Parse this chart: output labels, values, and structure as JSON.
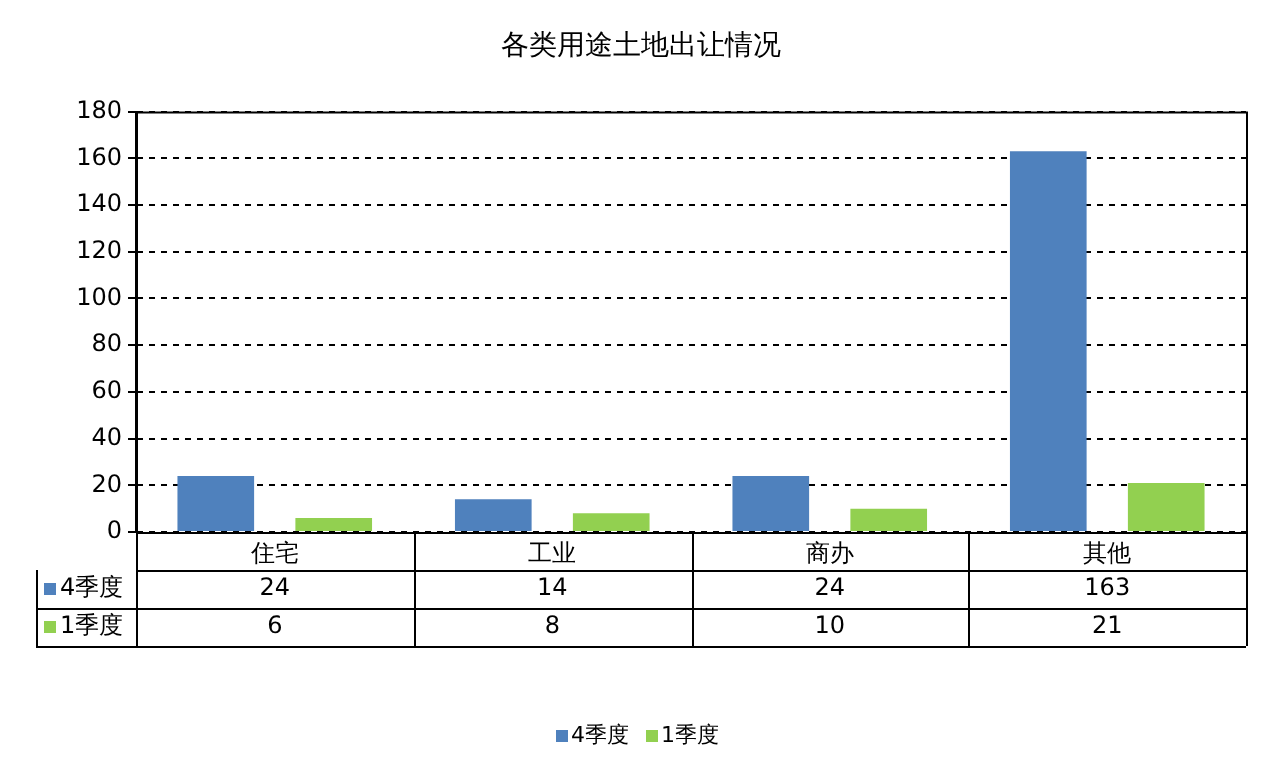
{
  "chart_data": {
    "type": "bar",
    "title": "各类用途土地出让情况",
    "categories": [
      "住宅",
      "工业",
      "商办",
      "其他"
    ],
    "series": [
      {
        "name": "4季度",
        "color": "#4f81bd",
        "values": [
          24,
          14,
          24,
          163
        ]
      },
      {
        "name": "1季度",
        "color": "#92d050",
        "values": [
          6,
          8,
          10,
          21
        ]
      }
    ],
    "ylim": [
      0,
      180
    ],
    "yticks": [
      0,
      20,
      40,
      60,
      80,
      100,
      120,
      140,
      160,
      180
    ],
    "grid": "y",
    "legend": "bottom",
    "data_labels": true
  }
}
